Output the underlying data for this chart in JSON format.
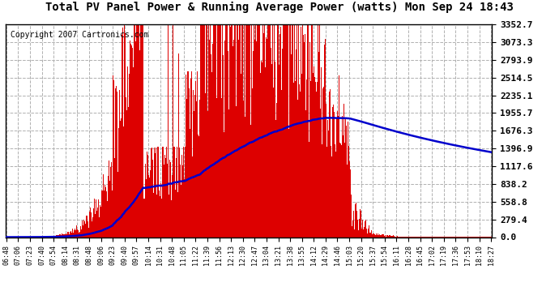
{
  "title": "Total PV Panel Power & Running Average Power (watts) Mon Sep 24 18:43",
  "copyright": "Copyright 2007 Cartronics.com",
  "bg_color": "#ffffff",
  "plot_bg_color": "#ffffff",
  "bar_color": "#dd0000",
  "line_color": "#0000cc",
  "grid_color": "#b0b0b0",
  "ylim": [
    0.0,
    3352.7
  ],
  "yticks": [
    0.0,
    279.4,
    558.8,
    838.2,
    1117.6,
    1396.9,
    1676.3,
    1955.7,
    2235.1,
    2514.5,
    2793.9,
    3073.3,
    3352.7
  ],
  "xtick_labels": [
    "06:48",
    "07:06",
    "07:23",
    "07:40",
    "07:54",
    "08:14",
    "08:31",
    "08:48",
    "09:06",
    "09:23",
    "09:40",
    "09:57",
    "10:14",
    "10:31",
    "10:48",
    "11:05",
    "11:22",
    "11:39",
    "11:56",
    "12:13",
    "12:30",
    "12:47",
    "13:04",
    "13:21",
    "13:38",
    "13:55",
    "14:12",
    "14:29",
    "14:46",
    "15:03",
    "15:20",
    "15:37",
    "15:54",
    "16:11",
    "16:28",
    "16:45",
    "17:02",
    "17:19",
    "17:36",
    "17:53",
    "18:10",
    "18:27"
  ],
  "peak_power": 3352.7,
  "title_fontsize": 10,
  "ytick_fontsize": 8,
  "xtick_fontsize": 6,
  "copyright_fontsize": 7
}
